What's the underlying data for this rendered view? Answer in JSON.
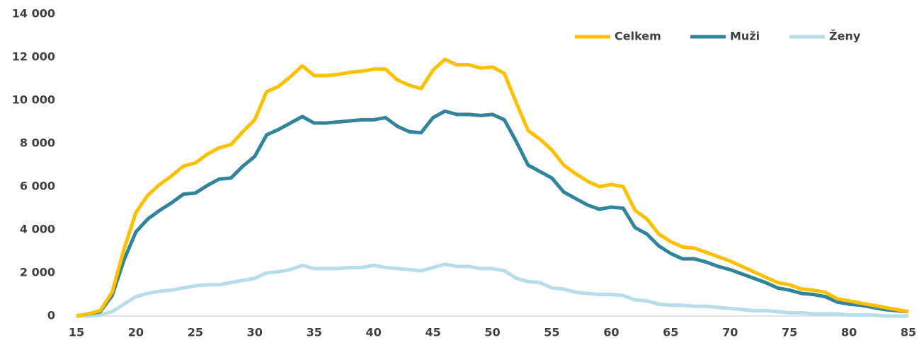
{
  "chart_data": {
    "type": "line",
    "x": [
      15,
      16,
      17,
      18,
      19,
      20,
      21,
      22,
      23,
      24,
      25,
      26,
      27,
      28,
      29,
      30,
      31,
      32,
      33,
      34,
      35,
      36,
      37,
      38,
      39,
      40,
      41,
      42,
      43,
      44,
      45,
      46,
      47,
      48,
      49,
      50,
      51,
      52,
      53,
      54,
      55,
      56,
      57,
      58,
      59,
      60,
      61,
      62,
      63,
      64,
      65,
      66,
      67,
      68,
      69,
      70,
      71,
      72,
      73,
      74,
      75,
      76,
      77,
      78,
      79,
      80,
      81,
      82,
      83,
      84,
      85
    ],
    "series": [
      {
        "name": "Celkem",
        "color": "#ffc000",
        "values": [
          0,
          100,
          250,
          1100,
          3100,
          4800,
          5600,
          6100,
          6500,
          6950,
          7100,
          7500,
          7800,
          7950,
          8550,
          9100,
          10400,
          10650,
          11100,
          11600,
          11150,
          11150,
          11200,
          11300,
          11350,
          11450,
          11450,
          10950,
          10700,
          10550,
          11400,
          11900,
          11650,
          11650,
          11500,
          11550,
          11250,
          9900,
          8600,
          8200,
          7700,
          7000,
          6600,
          6250,
          6000,
          6100,
          6000,
          4900,
          4500,
          3800,
          3450,
          3200,
          3150,
          2950,
          2750,
          2550,
          2300,
          2050,
          1800,
          1550,
          1450,
          1250,
          1200,
          1100,
          800,
          700,
          600,
          500,
          400,
          300,
          200
        ]
      },
      {
        "name": "Muži",
        "color": "#31849b",
        "values": [
          0,
          100,
          200,
          950,
          2600,
          3900,
          4500,
          4900,
          5250,
          5650,
          5700,
          6050,
          6350,
          6400,
          6950,
          7400,
          8400,
          8650,
          8950,
          9250,
          8950,
          8950,
          9000,
          9050,
          9100,
          9100,
          9200,
          8800,
          8550,
          8500,
          9200,
          9500,
          9350,
          9350,
          9300,
          9350,
          9100,
          8100,
          7000,
          6700,
          6400,
          5750,
          5450,
          5150,
          4950,
          5050,
          5000,
          4100,
          3800,
          3250,
          2900,
          2650,
          2650,
          2500,
          2300,
          2150,
          1950,
          1750,
          1550,
          1300,
          1200,
          1050,
          1000,
          900,
          650,
          550,
          500,
          400,
          300,
          250,
          200
        ]
      },
      {
        "name": "Ženy",
        "color": "#b7dde8",
        "values": [
          0,
          0,
          50,
          200,
          550,
          900,
          1050,
          1150,
          1200,
          1300,
          1400,
          1450,
          1450,
          1550,
          1650,
          1750,
          2000,
          2050,
          2150,
          2350,
          2200,
          2200,
          2200,
          2250,
          2250,
          2350,
          2250,
          2200,
          2150,
          2100,
          2250,
          2400,
          2300,
          2300,
          2200,
          2200,
          2100,
          1750,
          1600,
          1550,
          1300,
          1250,
          1100,
          1050,
          1000,
          1000,
          950,
          750,
          700,
          550,
          500,
          500,
          450,
          450,
          400,
          350,
          300,
          250,
          250,
          200,
          150,
          150,
          100,
          100,
          100,
          50,
          50,
          50,
          0,
          0,
          0
        ]
      }
    ],
    "xlim": [
      15,
      85
    ],
    "xticks": [
      15,
      20,
      25,
      30,
      35,
      40,
      45,
      50,
      55,
      60,
      65,
      70,
      75,
      80,
      85
    ],
    "ylim": [
      0,
      14000
    ],
    "yticks": [
      0,
      {
        "value": 2000,
        "label": "2 000"
      },
      {
        "value": 4000,
        "label": "4 000"
      },
      {
        "value": 6000,
        "label": "6 000"
      },
      {
        "value": 8000,
        "label": "8 000"
      },
      {
        "value": 10000,
        "label": "10 000"
      },
      {
        "value": 12000,
        "label": "12 000"
      },
      {
        "value": 14000,
        "label": "14 000"
      }
    ],
    "legend": "top-right"
  }
}
